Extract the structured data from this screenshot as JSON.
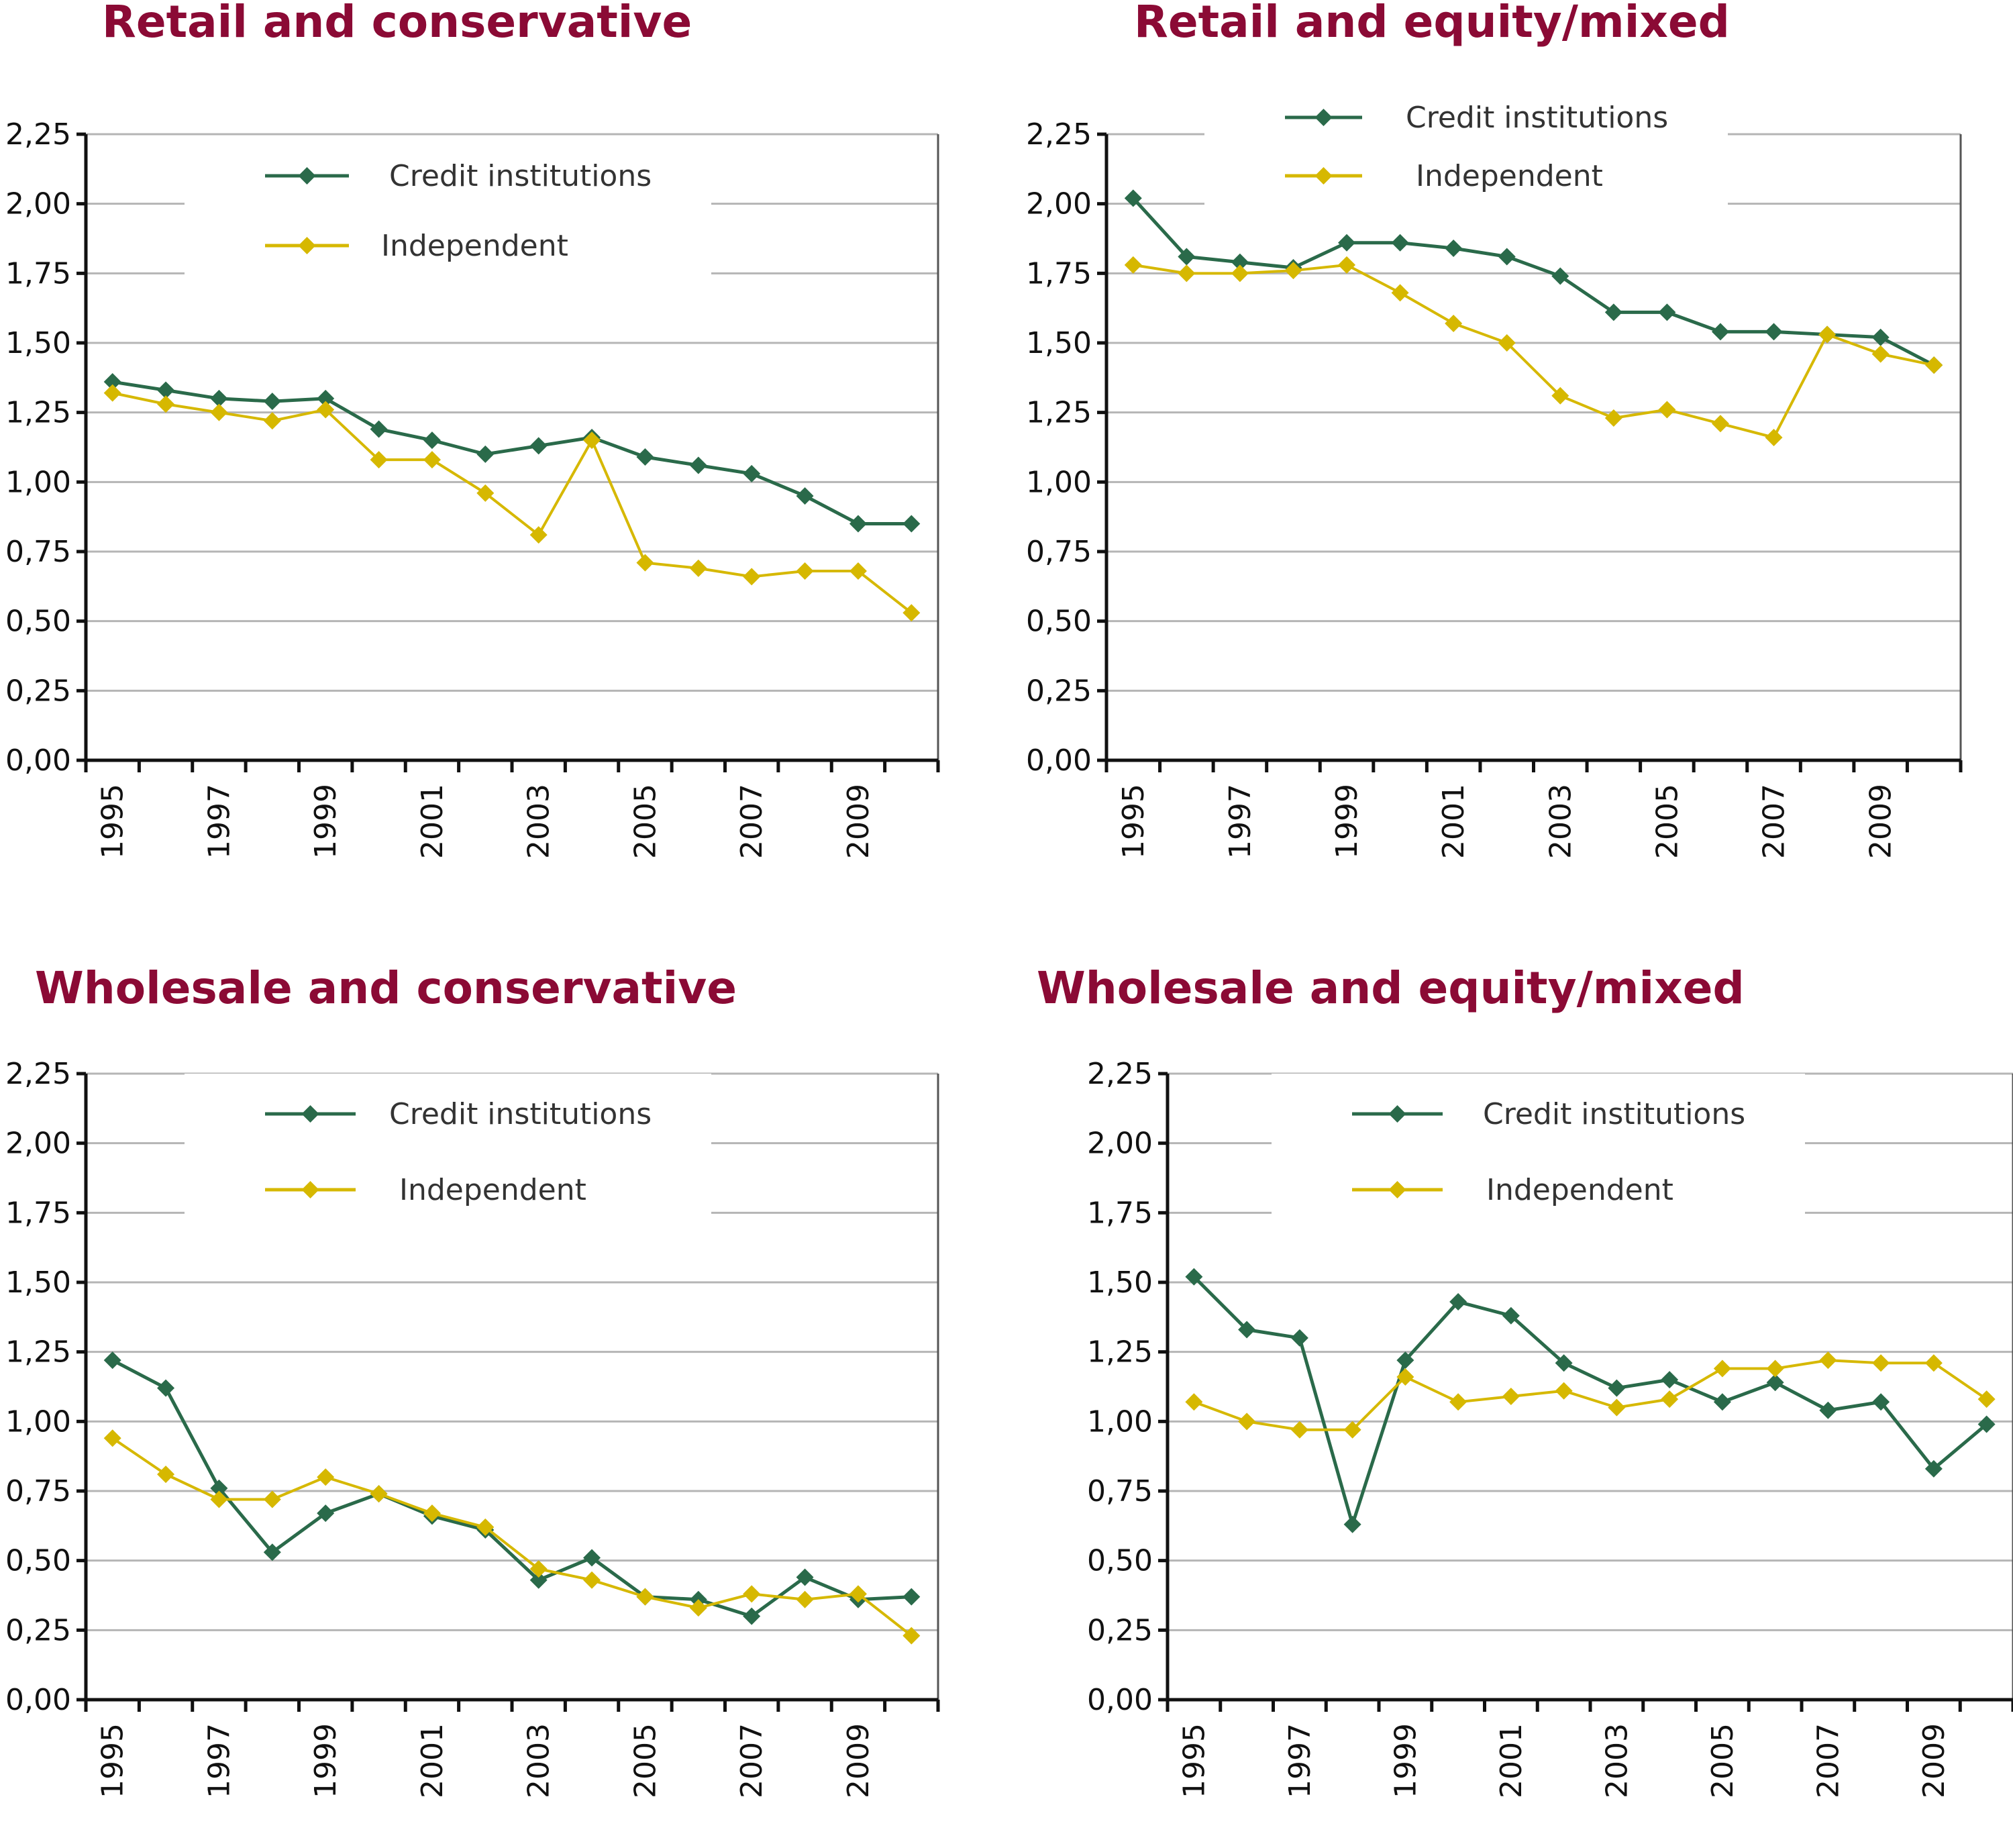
{
  "colors": {
    "title": "#8b0a35",
    "credit": "#2a6a4a",
    "independent": "#d6b800",
    "grid": "#b5b5b5",
    "axis": "#111111"
  },
  "chart_data": [
    {
      "type": "line",
      "title": "Retail and conservative",
      "xlabel": "",
      "ylabel": "",
      "x": [
        1995,
        1996,
        1997,
        1998,
        1999,
        2000,
        2001,
        2002,
        2003,
        2004,
        2005,
        2006,
        2007,
        2008,
        2009,
        2010
      ],
      "x_tick_labels": [
        "1995",
        "1997",
        "1999",
        "2001",
        "2003",
        "2005",
        "2007",
        "2009"
      ],
      "y_tick_labels": [
        "0,00",
        "0,25",
        "0,50",
        "0,75",
        "1,00",
        "1,25",
        "1,50",
        "1,75",
        "2,00",
        "2,25"
      ],
      "ylim": [
        0,
        2.25
      ],
      "grid": true,
      "legend_position": "top-center",
      "series": [
        {
          "name": "Credit institutions",
          "values": [
            1.36,
            1.33,
            1.3,
            1.29,
            1.3,
            1.19,
            1.15,
            1.1,
            1.13,
            1.16,
            1.09,
            1.06,
            1.03,
            0.95,
            0.85,
            0.85
          ]
        },
        {
          "name": "Independent",
          "values": [
            1.32,
            1.28,
            1.25,
            1.22,
            1.26,
            1.08,
            1.08,
            0.96,
            0.81,
            1.15,
            0.71,
            0.69,
            0.66,
            0.68,
            0.68,
            0.53
          ]
        }
      ]
    },
    {
      "type": "line",
      "title": "Retail and equity/mixed",
      "xlabel": "",
      "ylabel": "",
      "x": [
        1995,
        1996,
        1997,
        1998,
        1999,
        2000,
        2001,
        2002,
        2003,
        2004,
        2005,
        2006,
        2007,
        2008,
        2009,
        2010
      ],
      "x_tick_labels": [
        "1995",
        "1997",
        "1999",
        "2001",
        "2003",
        "2005",
        "2007",
        "2009"
      ],
      "y_tick_labels": [
        "0,00",
        "0,25",
        "0,50",
        "0,75",
        "1,00",
        "1,25",
        "1,50",
        "1,75",
        "2,00",
        "2,25"
      ],
      "ylim": [
        0,
        2.25
      ],
      "grid": true,
      "legend_position": "top-center",
      "series": [
        {
          "name": "Credit institutions",
          "values": [
            2.02,
            1.81,
            1.79,
            1.77,
            1.86,
            1.86,
            1.84,
            1.81,
            1.74,
            1.61,
            1.61,
            1.54,
            1.54,
            1.53,
            1.52,
            1.42
          ]
        },
        {
          "name": "Independent",
          "values": [
            1.78,
            1.75,
            1.75,
            1.76,
            1.78,
            1.68,
            1.57,
            1.5,
            1.31,
            1.23,
            1.26,
            1.21,
            1.16,
            1.53,
            1.46,
            1.42
          ]
        }
      ]
    },
    {
      "type": "line",
      "title": "Wholesale and conservative",
      "xlabel": "",
      "ylabel": "",
      "x": [
        1995,
        1996,
        1997,
        1998,
        1999,
        2000,
        2001,
        2002,
        2003,
        2004,
        2005,
        2006,
        2007,
        2008,
        2009,
        2010
      ],
      "x_tick_labels": [
        "1995",
        "1997",
        "1999",
        "2001",
        "2003",
        "2005",
        "2007",
        "2009"
      ],
      "y_tick_labels": [
        "0,00",
        "0,25",
        "0,50",
        "0,75",
        "1,00",
        "1,25",
        "1,50",
        "1,75",
        "2,00",
        "2,25"
      ],
      "ylim": [
        0,
        2.25
      ],
      "grid": true,
      "legend_position": "top-center",
      "series": [
        {
          "name": "Credit institutions",
          "values": [
            1.22,
            1.12,
            0.76,
            0.53,
            0.67,
            0.74,
            0.66,
            0.61,
            0.43,
            0.51,
            0.37,
            0.36,
            0.3,
            0.44,
            0.36,
            0.37
          ]
        },
        {
          "name": "Independent",
          "values": [
            0.94,
            0.81,
            0.72,
            0.72,
            0.8,
            0.74,
            0.67,
            0.62,
            0.47,
            0.43,
            0.37,
            0.33,
            0.38,
            0.36,
            0.38,
            0.23
          ]
        }
      ]
    },
    {
      "type": "line",
      "title": "Wholesale and equity/mixed",
      "xlabel": "",
      "ylabel": "",
      "x": [
        1995,
        1996,
        1997,
        1998,
        1999,
        2000,
        2001,
        2002,
        2003,
        2004,
        2005,
        2006,
        2007,
        2008,
        2009,
        2010
      ],
      "x_tick_labels": [
        "1995",
        "1997",
        "1999",
        "2001",
        "2003",
        "2005",
        "2007",
        "2009"
      ],
      "y_tick_labels": [
        "0,00",
        "0,25",
        "0,50",
        "0,75",
        "1,00",
        "1,25",
        "1,50",
        "1,75",
        "2,00",
        "2,25"
      ],
      "ylim": [
        0,
        2.25
      ],
      "grid": true,
      "legend_position": "top-center",
      "series": [
        {
          "name": "Credit institutions",
          "values": [
            1.52,
            1.33,
            1.3,
            0.63,
            1.22,
            1.43,
            1.38,
            1.21,
            1.12,
            1.15,
            1.07,
            1.14,
            1.04,
            1.07,
            0.83,
            0.99
          ]
        },
        {
          "name": "Independent",
          "values": [
            1.07,
            1.0,
            0.97,
            0.97,
            1.16,
            1.07,
            1.09,
            1.11,
            1.05,
            1.08,
            1.19,
            1.19,
            1.22,
            1.21,
            1.21,
            1.08
          ]
        }
      ]
    }
  ]
}
